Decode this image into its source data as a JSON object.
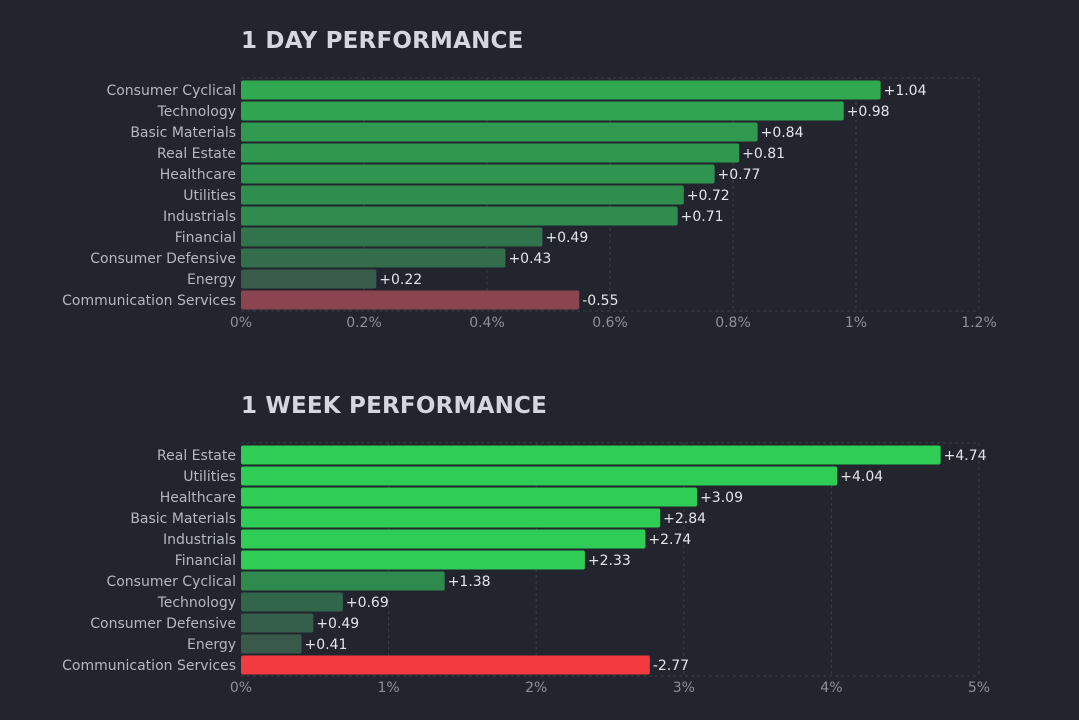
{
  "chart_data": [
    {
      "id": "day",
      "type": "bar",
      "orientation": "horizontal",
      "title": "1 DAY PERFORMANCE",
      "categories": [
        "Consumer Cyclical",
        "Technology",
        "Basic Materials",
        "Real Estate",
        "Healthcare",
        "Utilities",
        "Industrials",
        "Financial",
        "Consumer Defensive",
        "Energy",
        "Communication Services"
      ],
      "values": [
        1.04,
        0.98,
        0.84,
        0.81,
        0.77,
        0.72,
        0.71,
        0.49,
        0.43,
        0.22,
        -0.55
      ],
      "value_labels": [
        "+1.04",
        "+0.98",
        "+0.84",
        "+0.81",
        "+0.77",
        "+0.72",
        "+0.71",
        "+0.49",
        "+0.43",
        "+0.22",
        "-0.55"
      ],
      "bar_colors": [
        "#30a951",
        "#30a451",
        "#2f9a50",
        "#2f984f",
        "#2f944f",
        "#2f8d4e",
        "#2f8b4e",
        "#31744c",
        "#336d4c",
        "#3a5c4a",
        "#8b4551"
      ],
      "xlim": [
        0,
        1.2
      ],
      "xticks": [
        0,
        0.2,
        0.4,
        0.6,
        0.8,
        1,
        1.2
      ],
      "xtick_labels": [
        "0%",
        "0.2%",
        "0.4%",
        "0.6%",
        "0.8%",
        "1%",
        "1.2%"
      ],
      "grid": true
    },
    {
      "id": "week",
      "type": "bar",
      "orientation": "horizontal",
      "title": "1 WEEK PERFORMANCE",
      "categories": [
        "Real Estate",
        "Utilities",
        "Healthcare",
        "Basic Materials",
        "Industrials",
        "Financial",
        "Consumer Cyclical",
        "Technology",
        "Consumer Defensive",
        "Energy",
        "Communication Services"
      ],
      "values": [
        4.74,
        4.04,
        3.09,
        2.84,
        2.74,
        2.33,
        1.38,
        0.69,
        0.49,
        0.41,
        -2.77
      ],
      "value_labels": [
        "+4.74",
        "+4.04",
        "+3.09",
        "+2.84",
        "+2.74",
        "+2.33",
        "+1.38",
        "+0.69",
        "+0.49",
        "+0.41",
        "-2.77"
      ],
      "bar_colors": [
        "#2fcc56",
        "#2fcc56",
        "#2fcc56",
        "#2fcc56",
        "#2fcc56",
        "#2fcc56",
        "#2f8a4e",
        "#32664b",
        "#34604b",
        "#395a4a",
        "#f23a40"
      ],
      "xlim": [
        0,
        5
      ],
      "xticks": [
        0,
        1,
        2,
        3,
        4,
        5
      ],
      "xtick_labels": [
        "0%",
        "1%",
        "2%",
        "3%",
        "4%",
        "5%"
      ],
      "grid": true
    }
  ]
}
